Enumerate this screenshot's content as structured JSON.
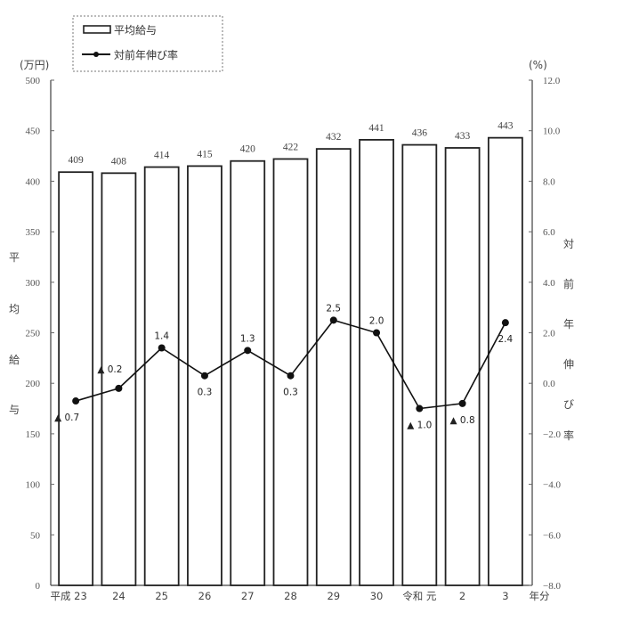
{
  "chart_data": {
    "type": "bar",
    "title": "",
    "categories": [
      "平成 23",
      "24",
      "25",
      "26",
      "27",
      "28",
      "29",
      "30",
      "令和 元",
      "2",
      "3"
    ],
    "x_suffix": "年分",
    "series": [
      {
        "name": "平均給与",
        "type": "bar",
        "axis": "left",
        "values": [
          409,
          408,
          414,
          415,
          420,
          422,
          432,
          441,
          436,
          433,
          443
        ],
        "labels": [
          "409",
          "408",
          "414",
          "415",
          "420",
          "422",
          "432",
          "441",
          "436",
          "433",
          "443"
        ]
      },
      {
        "name": "対前年伸び率",
        "type": "line",
        "axis": "right",
        "values": [
          -0.7,
          -0.2,
          1.4,
          0.3,
          1.3,
          0.3,
          2.5,
          2.0,
          -1.0,
          -0.8,
          2.4
        ],
        "labels": [
          "▲ 0.7",
          "▲ 0.2",
          "1.4",
          "0.3",
          "1.3",
          "0.3",
          "2.5",
          "2.0",
          "▲ 1.0",
          "▲ 0.8",
          "2.4"
        ],
        "label_pos": [
          "below-left",
          "above-left",
          "above",
          "below",
          "above",
          "below",
          "above",
          "above",
          "below",
          "below",
          "below"
        ]
      }
    ],
    "left_axis": {
      "label": "平均給与",
      "label_chars": [
        "平",
        "均",
        "給",
        "与"
      ],
      "unit": "(万円)",
      "ylim": [
        0,
        500
      ],
      "ticks": [
        0,
        50,
        100,
        150,
        200,
        250,
        300,
        350,
        400,
        450,
        500
      ]
    },
    "right_axis": {
      "label": "対前年伸び率",
      "label_chars": [
        "対",
        "前",
        "年",
        "伸",
        "び",
        "率"
      ],
      "unit": "(%)",
      "ylim": [
        -8.0,
        12.0
      ],
      "ticks": [
        "-8.0",
        "-6.0",
        "-4.0",
        "-2.0",
        "0.0",
        "2.0",
        "4.0",
        "6.0",
        "8.0",
        "10.0",
        "12.0"
      ]
    },
    "legend": {
      "position": "top-left",
      "entries": [
        "平均給与",
        "対前年伸び率"
      ]
    },
    "grid": false
  }
}
